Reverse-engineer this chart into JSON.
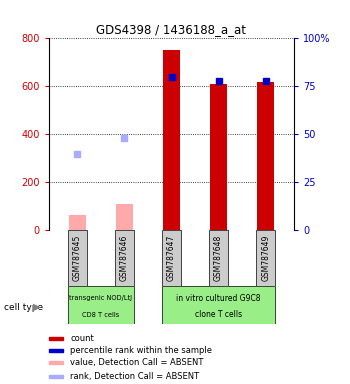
{
  "title": "GDS4398 / 1436188_a_at",
  "samples": [
    "GSM787645",
    "GSM787646",
    "GSM787647",
    "GSM787648",
    "GSM787649"
  ],
  "count_values": [
    null,
    null,
    750,
    610,
    618
  ],
  "value_absent": [
    65,
    110,
    null,
    null,
    null
  ],
  "percentile_present": [
    null,
    null,
    80,
    78,
    78
  ],
  "rank_absent": [
    40,
    48,
    null,
    null,
    null
  ],
  "ylim_left": [
    0,
    800
  ],
  "ylim_right": [
    0,
    100
  ],
  "yticks_left": [
    0,
    200,
    400,
    600,
    800
  ],
  "yticks_right": [
    0,
    25,
    50,
    75,
    100
  ],
  "ytick_labels_right": [
    "0",
    "25",
    "50",
    "75",
    "100%"
  ],
  "color_count": "#cc0000",
  "color_percentile": "#0000cc",
  "color_value_absent": "#ffaaaa",
  "color_rank_absent": "#aaaaff",
  "group1_label_line1": "transgenic NOD/LtJ",
  "group1_label_line2": "CD8 T cells",
  "group2_label_line1": "in vitro cultured G9C8",
  "group2_label_line2": "clone T cells",
  "group_bg_color": "#99ee88",
  "sample_box_color": "#cccccc",
  "bar_width": 0.35,
  "legend_items": [
    {
      "color": "#cc0000",
      "label": "count"
    },
    {
      "color": "#0000cc",
      "label": "percentile rank within the sample"
    },
    {
      "color": "#ffaaaa",
      "label": "value, Detection Call = ABSENT"
    },
    {
      "color": "#aaaaff",
      "label": "rank, Detection Call = ABSENT"
    }
  ]
}
